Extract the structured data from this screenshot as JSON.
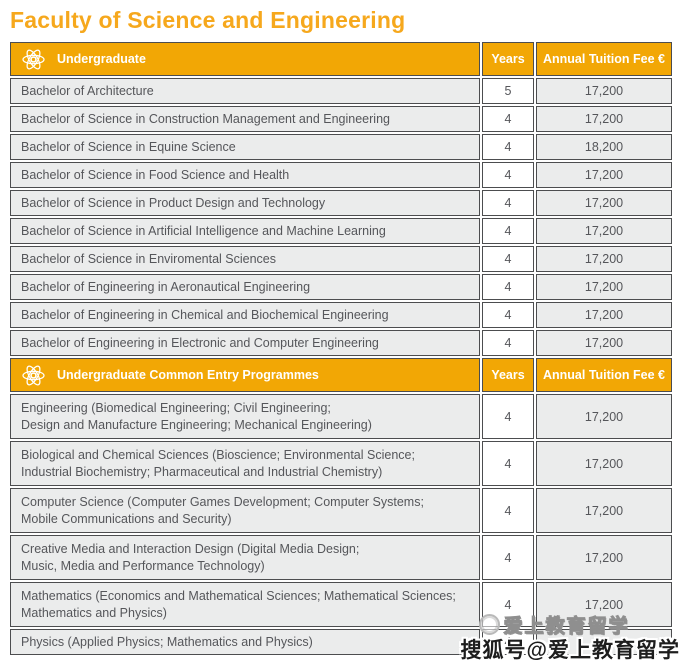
{
  "title": "Faculty of Science and Engineering",
  "colors": {
    "accent_orange": "#F2A705",
    "title_orange": "#F6A81D",
    "row_gray": "#EBECEC",
    "border_dark": "#4C4D4F",
    "text_dark": "#55565A"
  },
  "table": {
    "sections": [
      {
        "header": {
          "icon": "atom-icon",
          "label": "Undergraduate",
          "years_label": "Years",
          "fee_label": "Annual Tuition Fee €"
        },
        "rows": [
          {
            "programme": "Bachelor of Architecture",
            "years": "5",
            "fee": "17,200"
          },
          {
            "programme": "Bachelor of Science in Construction Management and Engineering",
            "years": "4",
            "fee": "17,200"
          },
          {
            "programme": "Bachelor of Science in Equine Science",
            "years": "4",
            "fee": "18,200"
          },
          {
            "programme": "Bachelor of Science in Food Science and Health",
            "years": "4",
            "fee": "17,200"
          },
          {
            "programme": "Bachelor of Science in Product Design and Technology",
            "years": "4",
            "fee": "17,200"
          },
          {
            "programme": "Bachelor of Science in Artificial Intelligence and Machine Learning",
            "years": "4",
            "fee": "17,200"
          },
          {
            "programme": "Bachelor of Science in Enviromental Sciences",
            "years": "4",
            "fee": "17,200"
          },
          {
            "programme": "Bachelor of Engineering in Aeronautical Engineering",
            "years": "4",
            "fee": "17,200"
          },
          {
            "programme": "Bachelor of Engineering in Chemical and Biochemical Engineering",
            "years": "4",
            "fee": "17,200"
          },
          {
            "programme": "Bachelor of Engineering in Electronic and Computer Engineering",
            "years": "4",
            "fee": "17,200"
          }
        ]
      },
      {
        "header": {
          "icon": "atom-icon",
          "label": "Undergraduate Common Entry Programmes",
          "years_label": "Years",
          "fee_label": "Annual Tuition Fee €"
        },
        "rows": [
          {
            "programme": "Engineering (Biomedical Engineering; Civil Engineering;\nDesign and Manufacture Engineering; Mechanical Engineering)",
            "years": "4",
            "fee": "17,200"
          },
          {
            "programme": "Biological and Chemical Sciences (Bioscience; Environmental Science;\nIndustrial Biochemistry; Pharmaceutical and Industrial Chemistry)",
            "years": "4",
            "fee": "17,200"
          },
          {
            "programme": "Computer Science (Computer Games Development; Computer Systems;\nMobile Communications and Security)",
            "years": "4",
            "fee": "17,200"
          },
          {
            "programme": "Creative Media and Interaction Design (Digital Media Design;\nMusic, Media and Performance Technology)",
            "years": "4",
            "fee": "17,200"
          },
          {
            "programme": "Mathematics (Economics and Mathematical Sciences; Mathematical Sciences;\nMathematics and Physics)",
            "years": "4",
            "fee": "17,200"
          },
          {
            "programme": "Physics (Applied Physics; Mathematics and Physics)",
            "years": "4",
            "fee": ""
          }
        ]
      }
    ]
  },
  "watermark": {
    "line1": "爱上教育留学",
    "line2": "搜狐号@爱上教育留学"
  }
}
